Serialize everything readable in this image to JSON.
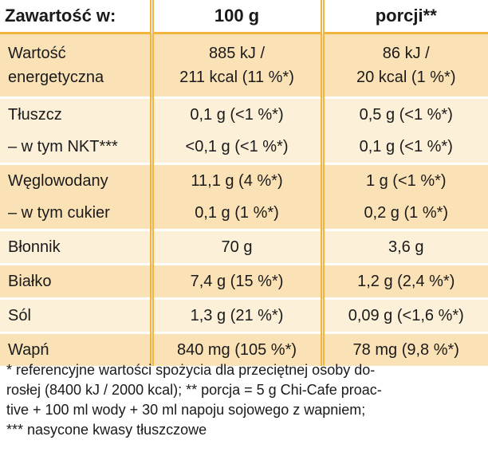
{
  "header": {
    "col1": "Zawartość w:",
    "col2": "100 g",
    "col3": "porcji**"
  },
  "rows": [
    {
      "name1": "Wartość",
      "name2": "energetyczna",
      "v100_1": "885 kJ /",
      "v100_2": "211 kcal (11 %*)",
      "vp_1": "86 kJ /",
      "vp_2": "20 kcal (1 %*)"
    },
    {
      "name": "Tłuszcz",
      "v100": "0,1 g (<1 %*)",
      "vp": "0,5 g (<1 %*)"
    },
    {
      "name": "– w tym NKT***",
      "v100": "<0,1 g (<1 %*)",
      "vp": "0,1 g (<1 %*)"
    },
    {
      "name": "Węglowodany",
      "v100": "11,1 g (4 %*)",
      "vp": "1 g (<1 %*)"
    },
    {
      "name": "– w tym cukier",
      "v100": "0,1 g (1 %*)",
      "vp": "0,2 g (1 %*)"
    },
    {
      "name": "Błonnik",
      "v100": "70 g",
      "vp": "3,6 g"
    },
    {
      "name": "Białko",
      "v100": "7,4 g (15 %*)",
      "vp": "1,2 g (2,4 %*)"
    },
    {
      "name": "Sól",
      "v100": "1,3 g (21 %*)",
      "vp": "0,09 g (<1,6 %*)"
    },
    {
      "name": "Wapń",
      "v100": "840 mg (105 %*)",
      "vp": "78 mg (9,8 %*)"
    }
  ],
  "footnote": {
    "line1": "* referencyjne wartości spożycia dla przeciętnej osoby do-",
    "line2": "rosłej (8400 kJ / 2000 kcal); ** porcja = 5 g Chi-Cafe proac-",
    "line3": "tive + 100 ml wody + 30 ml napoju sojowego z wapniem;",
    "line4": "*** nasycone kwasy tłuszczowe"
  },
  "colors": {
    "accent": "#f2b53d",
    "row_dark": "#fbe2b6",
    "row_light": "#fdf0d9"
  }
}
